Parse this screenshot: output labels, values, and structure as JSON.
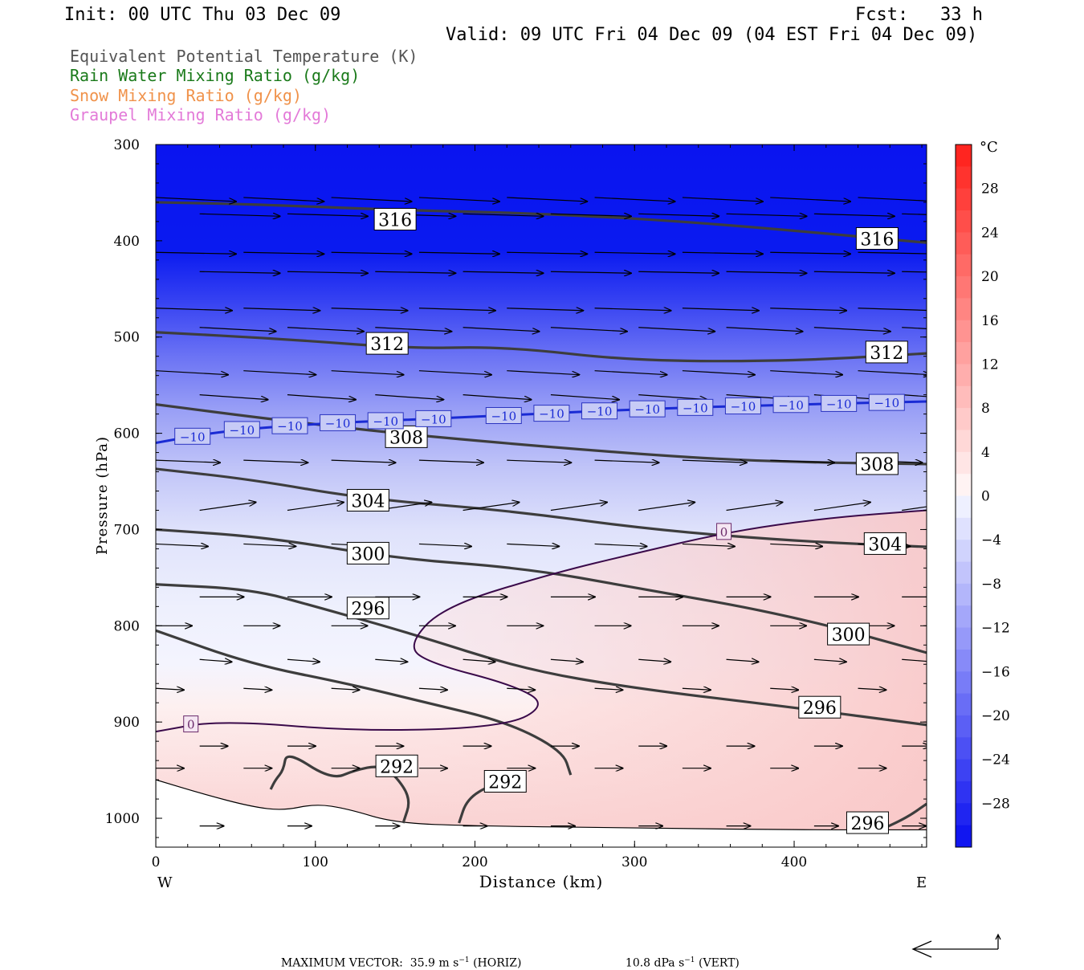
{
  "header": {
    "init": "Init: 00 UTC Thu 03 Dec 09",
    "fcst": "Fcst:   33 h",
    "valid": "Valid: 09 UTC Fri 04 Dec 09 (04 EST Fri 04 Dec 09)"
  },
  "legend": [
    {
      "text": "Equivalent Potential Temperature (K)",
      "color": "#555555"
    },
    {
      "text": "Rain Water Mixing Ratio (g/kg)",
      "color": "#1a7a1a"
    },
    {
      "text": "Snow Mixing Ratio (g/kg)",
      "color": "#f0924a"
    },
    {
      "text": "Graupel Mixing Ratio (g/kg)",
      "color": "#e37ad8"
    }
  ],
  "chart_data": {
    "type": "contour-cross-section",
    "xlabel": "Distance (km)",
    "ylabel": "Pressure (hPa)",
    "xlim": [
      0,
      483
    ],
    "ylim": [
      1030,
      300
    ],
    "x_ticks": [
      0,
      100,
      200,
      300,
      400
    ],
    "y_ticks": [
      300,
      400,
      500,
      600,
      700,
      800,
      900,
      1000
    ],
    "left_end_label": "W",
    "right_end_label": "E",
    "colorbar": {
      "unit": "°C",
      "ticks": [
        "28",
        "24",
        "20",
        "16",
        "12",
        "8",
        "4",
        "0",
        "−4",
        "−8",
        "−12",
        "−16",
        "−20",
        "−24",
        "−28"
      ],
      "levels": [
        -32,
        -30,
        -28,
        -26,
        -24,
        -22,
        -20,
        -18,
        -16,
        -14,
        -12,
        -10,
        -8,
        -6,
        -4,
        -2,
        0,
        2,
        4,
        6,
        8,
        10,
        12,
        14,
        16,
        18,
        20,
        22,
        24,
        26,
        28,
        30,
        32
      ]
    },
    "theta_e_contours": [
      {
        "value": 316,
        "points": [
          [
            0,
            360
          ],
          [
            60,
            362
          ],
          [
            150,
            368
          ],
          [
            250,
            372
          ],
          [
            350,
            382
          ],
          [
            483,
            402
          ]
        ],
        "labels": [
          [
            150,
            378
          ],
          [
            452,
            398
          ]
        ]
      },
      {
        "value": 312,
        "points": [
          [
            0,
            495
          ],
          [
            80,
            502
          ],
          [
            160,
            512
          ],
          [
            220,
            510
          ],
          [
            300,
            525
          ],
          [
            400,
            525
          ],
          [
            483,
            517
          ]
        ],
        "labels": [
          [
            145,
            507
          ],
          [
            458,
            516
          ]
        ]
      },
      {
        "value": 308,
        "points": [
          [
            0,
            570
          ],
          [
            70,
            585
          ],
          [
            150,
            600
          ],
          [
            230,
            612
          ],
          [
            330,
            625
          ],
          [
            400,
            630
          ],
          [
            483,
            632
          ]
        ],
        "labels": [
          [
            157,
            604
          ],
          [
            452,
            632
          ]
        ]
      },
      {
        "value": 304,
        "points": [
          [
            0,
            637
          ],
          [
            60,
            648
          ],
          [
            130,
            668
          ],
          [
            220,
            680
          ],
          [
            310,
            700
          ],
          [
            400,
            712
          ],
          [
            483,
            718
          ]
        ],
        "labels": [
          [
            133,
            670
          ],
          [
            457,
            715
          ]
        ]
      },
      {
        "value": 300,
        "points": [
          [
            0,
            700
          ],
          [
            70,
            708
          ],
          [
            150,
            730
          ],
          [
            230,
            740
          ],
          [
            300,
            760
          ],
          [
            400,
            790
          ],
          [
            483,
            828
          ]
        ],
        "labels": [
          [
            133,
            725
          ],
          [
            434,
            809
          ]
        ]
      },
      {
        "value": 296,
        "points": [
          [
            0,
            757
          ],
          [
            60,
            762
          ],
          [
            100,
            780
          ],
          [
            160,
            808
          ],
          [
            230,
            845
          ],
          [
            300,
            865
          ],
          [
            400,
            885
          ],
          [
            483,
            903
          ]
        ],
        "labels": [
          [
            133,
            782
          ],
          [
            416,
            885
          ]
        ]
      },
      {
        "value": 296,
        "points": [
          [
            0,
            805
          ],
          [
            60,
            840
          ],
          [
            120,
            860
          ],
          [
            170,
            880
          ],
          [
            220,
            900
          ],
          [
            255,
            930
          ],
          [
            260,
            955
          ]
        ],
        "labels": []
      },
      {
        "value": 292,
        "points": [
          [
            155,
            1005
          ],
          [
            160,
            980
          ],
          [
            150,
            955
          ],
          [
            140,
            945
          ],
          [
            125,
            950
          ],
          [
            110,
            960
          ],
          [
            82,
            930
          ],
          [
            80,
            950
          ],
          [
            75,
            960
          ],
          [
            72,
            970
          ]
        ],
        "labels": [
          [
            151,
            946
          ]
        ]
      },
      {
        "value": 292,
        "points": [
          [
            190,
            1005
          ],
          [
            195,
            980
          ],
          [
            210,
            965
          ],
          [
            230,
            960
          ]
        ],
        "labels": [
          [
            219,
            962
          ]
        ]
      },
      {
        "value": 296,
        "points": [
          [
            450,
            1015
          ],
          [
            470,
            1000
          ],
          [
            483,
            985
          ]
        ],
        "labels": [
          [
            446,
            1005
          ]
        ]
      }
    ],
    "minus10C_isotherm": {
      "value": -10,
      "points": [
        [
          0,
          610
        ],
        [
          40,
          598
        ],
        [
          100,
          590
        ],
        [
          200,
          583
        ],
        [
          300,
          575
        ],
        [
          400,
          570
        ],
        [
          483,
          567
        ]
      ],
      "label_x": [
        23,
        54,
        84,
        114,
        144,
        174,
        218,
        248,
        278,
        308,
        338,
        368,
        398,
        428,
        458
      ]
    },
    "zero_C_isotherm": {
      "value": 0,
      "points": [
        [
          0,
          910
        ],
        [
          40,
          898
        ],
        [
          130,
          910
        ],
        [
          220,
          905
        ],
        [
          245,
          882
        ],
        [
          225,
          862
        ],
        [
          170,
          838
        ],
        [
          158,
          820
        ],
        [
          180,
          780
        ],
        [
          250,
          745
        ],
        [
          300,
          725
        ],
        [
          360,
          702
        ],
        [
          420,
          688
        ],
        [
          483,
          680
        ]
      ],
      "labels": [
        [
          220,
          702
        ],
        [
          22,
          902
        ]
      ]
    },
    "vectors": {
      "max_vector_label": "MAXIMUM VECTOR:  35.9 m s",
      "max_vector_unit": "(HORIZ)",
      "vert_vector_label": "10.8 dPa s",
      "vert_vector_unit": "(VERT)"
    }
  }
}
